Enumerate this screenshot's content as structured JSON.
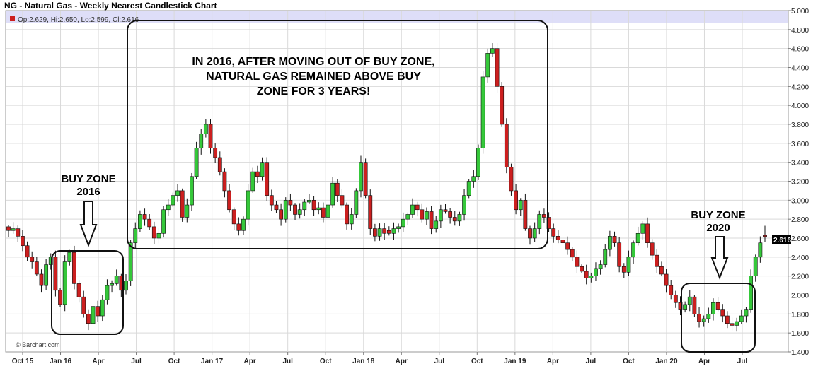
{
  "title": "NG - Natural Gas - Weekly Nearest Candlestick Chart",
  "ohlc_legend": "Op:2.629, Hi:2.650, Lo:2.599, Cl:2.616",
  "watermark": "© Barchart.com",
  "last_price_label": "2.616",
  "annotations": {
    "main_text": [
      "IN 2016, AFTER MOVING OUT OF BUY ZONE,",
      "NATURAL GAS REMAINED ABOVE BUY",
      "ZONE FOR 3 YEARS!"
    ],
    "buy_zone_2016": [
      "BUY ZONE",
      "2016"
    ],
    "buy_zone_2020": [
      "BUY ZONE",
      "2020"
    ]
  },
  "colors": {
    "up": "#35c83a",
    "down": "#cc1f1f",
    "grid": "#d9d9d9",
    "highlight": "#dedef8"
  },
  "chart_data": {
    "type": "candlestick",
    "title": "NG - Natural Gas - Weekly Nearest Candlestick Chart",
    "x_labels": [
      "Oct 15",
      "Jan 16",
      "Apr",
      "Jul",
      "Oct",
      "Jan 17",
      "Apr",
      "Jul",
      "Oct",
      "Jan 18",
      "Apr",
      "Jul",
      "Oct",
      "Jan 19",
      "Apr",
      "Jul",
      "Oct",
      "Jan 20",
      "Apr",
      "Jul"
    ],
    "y_ticks": [
      "1.400",
      "1.600",
      "1.800",
      "2.000",
      "2.200",
      "2.400",
      "2.600",
      "2.800",
      "3.000",
      "3.200",
      "3.400",
      "3.600",
      "3.800",
      "4.000",
      "4.200",
      "4.400",
      "4.600",
      "4.800",
      "5.000"
    ],
    "ylim": [
      1.4,
      5.0
    ],
    "grid": true,
    "last": {
      "open": 2.629,
      "high": 2.65,
      "low": 2.599,
      "close": 2.616
    },
    "weekly_close_approx": [
      2.68,
      2.7,
      2.62,
      2.52,
      2.4,
      2.35,
      2.22,
      2.1,
      2.32,
      2.4,
      2.05,
      1.9,
      2.35,
      2.45,
      2.12,
      1.98,
      1.8,
      1.7,
      1.88,
      1.78,
      1.95,
      2.1,
      2.12,
      2.2,
      2.05,
      2.15,
      2.55,
      2.7,
      2.85,
      2.8,
      2.72,
      2.6,
      2.65,
      2.9,
      2.95,
      3.05,
      3.1,
      2.82,
      2.95,
      3.25,
      3.55,
      3.7,
      3.8,
      3.55,
      3.45,
      3.3,
      3.1,
      2.9,
      2.75,
      2.68,
      2.8,
      3.1,
      3.3,
      3.25,
      3.4,
      3.05,
      2.95,
      2.9,
      2.8,
      3.0,
      2.95,
      2.85,
      2.9,
      2.98,
      3.0,
      2.9,
      2.92,
      2.82,
      2.95,
      3.18,
      3.05,
      2.95,
      2.75,
      2.85,
      3.1,
      3.4,
      3.05,
      2.7,
      2.62,
      2.7,
      2.65,
      2.65,
      2.7,
      2.72,
      2.8,
      2.85,
      2.95,
      2.9,
      2.8,
      2.88,
      2.7,
      2.78,
      2.9,
      2.88,
      2.82,
      2.78,
      2.85,
      3.05,
      3.2,
      3.25,
      3.55,
      4.3,
      4.55,
      4.6,
      4.2,
      3.8,
      3.35,
      3.1,
      2.9,
      3.0,
      2.7,
      2.6,
      2.7,
      2.85,
      2.82,
      2.7,
      2.62,
      2.58,
      2.55,
      2.48,
      2.4,
      2.3,
      2.25,
      2.18,
      2.2,
      2.28,
      2.32,
      2.48,
      2.62,
      2.55,
      2.3,
      2.24,
      2.4,
      2.55,
      2.65,
      2.75,
      2.55,
      2.42,
      2.3,
      2.22,
      2.1,
      2.0,
      1.92,
      1.85,
      1.9,
      1.98,
      1.8,
      1.72,
      1.75,
      1.8,
      1.92,
      1.85,
      1.78,
      1.7,
      1.68,
      1.72,
      1.78,
      1.85,
      2.2,
      2.4,
      2.55,
      2.616
    ]
  }
}
